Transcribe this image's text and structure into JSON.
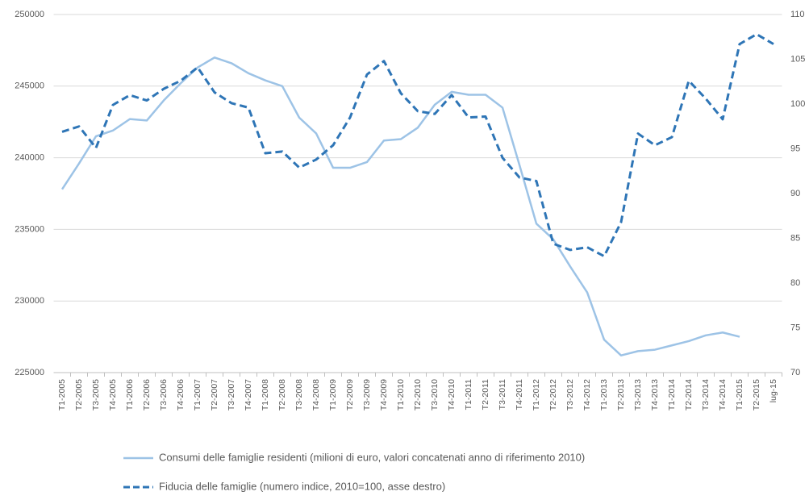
{
  "chart_data": {
    "type": "line",
    "categories": [
      "T1-2005",
      "T2-2005",
      "T3-2005",
      "T4-2005",
      "T1-2006",
      "T2-2006",
      "T3-2006",
      "T4-2006",
      "T1-2007",
      "T2-2007",
      "T3-2007",
      "T4-2007",
      "T1-2008",
      "T2-2008",
      "T3-2008",
      "T4-2008",
      "T1-2009",
      "T2-2009",
      "T3-2009",
      "T4-2009",
      "T1-2010",
      "T2-2010",
      "T3-2010",
      "T4-2010",
      "T1-2011",
      "T2-2011",
      "T3-2011",
      "T4-2011",
      "T1-2012",
      "T2-2012",
      "T3-2012",
      "T4-2012",
      "T1-2013",
      "T2-2013",
      "T3-2013",
      "T4-2013",
      "T1-2014",
      "T2-2014",
      "T3-2014",
      "T4-2014",
      "T1-2015",
      "T2-2015",
      "lug-15"
    ],
    "series": [
      {
        "name": "Consumi delle famiglie residenti (milioni di euro, valori concatenati anno di riferimento 2010)",
        "color": "#9dc3e6",
        "dash": false,
        "values": [
          237800,
          239600,
          241500,
          241900,
          242700,
          242600,
          244000,
          245200,
          246300,
          247000,
          246600,
          245900,
          245400,
          245000,
          242800,
          241700,
          239300,
          239300,
          239700,
          241200,
          241300,
          242100,
          243700,
          244600,
          244400,
          244400,
          243500,
          239500,
          235400,
          234300,
          232400,
          230600,
          227300,
          226200,
          226500,
          226600,
          226900,
          227200,
          227600,
          227800,
          227500,
          null,
          null
        ]
      },
      {
        "name": "Fiducia delle famiglie (numero indice, 2010=100, asse destro)",
        "color": "#2e75b6",
        "dash": true,
        "axis": "y2",
        "values": [
          96.9,
          97.5,
          95.1,
          99.9,
          101.0,
          100.4,
          101.7,
          102.6,
          104.1,
          101.3,
          100.1,
          99.6,
          94.5,
          94.7,
          92.9,
          93.8,
          95.4,
          98.5,
          103.3,
          104.8,
          101.2,
          99.2,
          98.9,
          101.0,
          98.5,
          98.6,
          94.0,
          91.8,
          91.4,
          84.4,
          83.7,
          84.0,
          83.0,
          86.8,
          96.7,
          95.4,
          96.3,
          102.6,
          100.6,
          98.3,
          106.7,
          107.8,
          106.7
        ]
      }
    ],
    "ylim": [
      225000,
      250000
    ],
    "yticks": [
      225000,
      230000,
      235000,
      240000,
      245000,
      250000
    ],
    "y2lim": [
      70,
      110
    ],
    "y2ticks": [
      70,
      75,
      80,
      85,
      90,
      95,
      100,
      105,
      110
    ],
    "grid": true,
    "legend": "bottom"
  }
}
